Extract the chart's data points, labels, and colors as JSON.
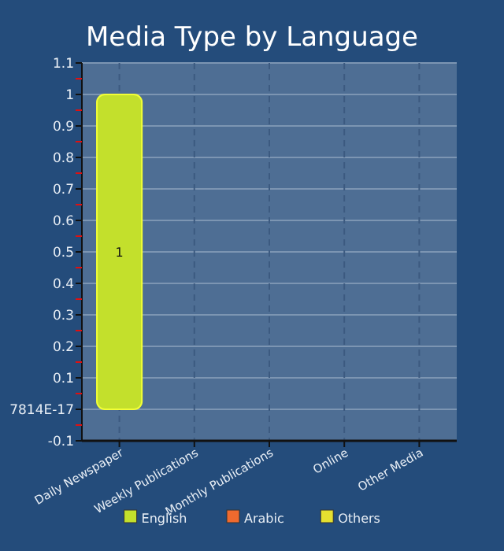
{
  "chart_data": {
    "type": "bar",
    "title": "Media Type by Language",
    "categories": [
      "Daily Newspaper",
      "Weekly Publications",
      "Monthly Publications",
      "Online",
      "Other Media"
    ],
    "series": [
      {
        "name": "English",
        "color": "#c3e02c",
        "values": [
          1,
          0,
          0,
          0,
          0
        ],
        "value_labels": [
          "1",
          null,
          null,
          null,
          null
        ]
      },
      {
        "name": "Arabic",
        "color": "#f06a2e",
        "values": [
          0,
          0,
          0,
          0,
          0
        ]
      },
      {
        "name": "Others",
        "color": "#e5e030",
        "values": [
          0,
          0,
          0,
          0,
          0
        ]
      }
    ],
    "ylim": [
      -0.1,
      1.1
    ],
    "yticks": [
      -0.1,
      {
        "value": 0,
        "label": "7814E-17"
      },
      0.1,
      0.2,
      0.3,
      0.4,
      0.5,
      0.6,
      0.7,
      0.8,
      0.9,
      1,
      1.1
    ],
    "grid": true,
    "legend": "bottom"
  }
}
